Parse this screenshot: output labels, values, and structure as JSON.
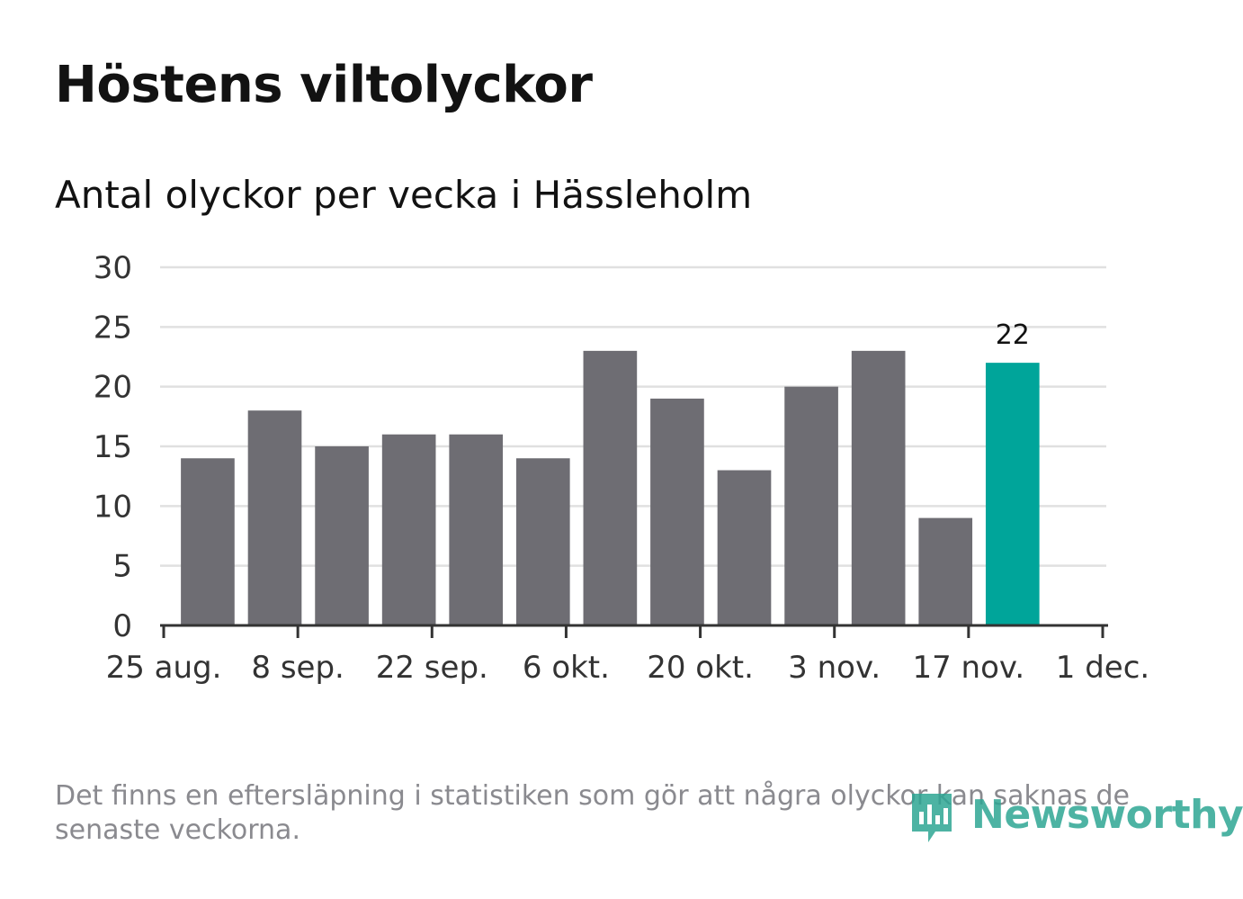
{
  "title": "Höstens viltolyckor",
  "subtitle": "Antal olyckor per vecka i Hässleholm",
  "footnote": "Det finns en eftersläpning i statistiken som gör att några olyckor kan saknas de senaste veckorna.",
  "brand": "Newsworthy",
  "colors": {
    "bar": "#6e6d73",
    "highlight": "#00a59a",
    "brand": "#2ea694",
    "grid": "#e0e0e0",
    "axis": "#333333"
  },
  "chart_data": {
    "type": "bar",
    "title": "Antal olyckor per vecka i Hässleholm",
    "xlabel": "",
    "ylabel": "",
    "ylim": [
      0,
      30
    ],
    "yticks": [
      0,
      5,
      10,
      15,
      20,
      25,
      30
    ],
    "xlim": [
      "2019-08-25",
      "2019-12-01"
    ],
    "xticks": [
      {
        "date": "2019-08-25",
        "label": "25 aug."
      },
      {
        "date": "2019-09-08",
        "label": "8 sep."
      },
      {
        "date": "2019-09-22",
        "label": "22 sep."
      },
      {
        "date": "2019-10-06",
        "label": "6 okt."
      },
      {
        "date": "2019-10-20",
        "label": "20 okt."
      },
      {
        "date": "2019-11-03",
        "label": "3 nov."
      },
      {
        "date": "2019-11-17",
        "label": "17 nov."
      },
      {
        "date": "2019-12-01",
        "label": "1 dec."
      }
    ],
    "weeks": [
      "2019-08-26",
      "2019-09-02",
      "2019-09-09",
      "2019-09-16",
      "2019-09-23",
      "2019-09-30",
      "2019-10-07",
      "2019-10-14",
      "2019-10-21",
      "2019-10-28",
      "2019-11-04",
      "2019-11-11",
      "2019-11-18"
    ],
    "values": [
      14,
      18,
      15,
      16,
      16,
      14,
      23,
      19,
      13,
      20,
      23,
      9,
      22
    ],
    "highlight_index": 12,
    "data_labels": [
      {
        "index": 12,
        "text": "22"
      }
    ],
    "grid": true
  }
}
